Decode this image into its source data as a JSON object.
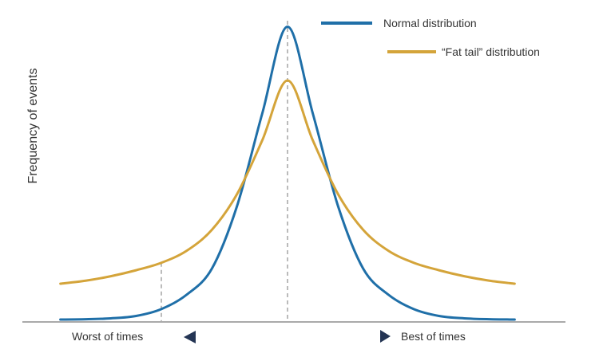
{
  "chart_data": {
    "type": "line",
    "title": "",
    "xlabel": "",
    "ylabel": "Frequency of events",
    "grid": false,
    "legend_position": "top-right",
    "x_extremes": {
      "left_label": "Worst of times",
      "right_label": "Best of times"
    },
    "xlim": [
      -4,
      4
    ],
    "ylim": [
      0,
      1
    ],
    "series": [
      {
        "name": "Normal distribution",
        "color": "#1f6fa8",
        "x": [
          -3.6,
          -3.2,
          -2.8,
          -2.4,
          -2.0,
          -1.6,
          -1.2,
          -0.8,
          -0.4,
          0.0,
          0.4,
          0.8,
          1.2,
          1.6,
          2.0,
          2.4,
          2.8,
          3.2,
          3.6
        ],
        "y": [
          0.0,
          0.001,
          0.004,
          0.012,
          0.035,
          0.083,
          0.17,
          0.38,
          0.69,
          0.98,
          0.69,
          0.38,
          0.17,
          0.083,
          0.035,
          0.012,
          0.004,
          0.001,
          0.0
        ]
      },
      {
        "name": "“Fat tail” distribution",
        "color": "#d4a43a",
        "x": [
          -3.6,
          -3.2,
          -2.8,
          -2.4,
          -2.0,
          -1.6,
          -1.2,
          -0.8,
          -0.4,
          0.0,
          0.4,
          0.8,
          1.2,
          1.6,
          2.0,
          2.4,
          2.8,
          3.2,
          3.6
        ],
        "y": [
          0.12,
          0.13,
          0.145,
          0.165,
          0.19,
          0.23,
          0.3,
          0.42,
          0.6,
          0.8,
          0.6,
          0.42,
          0.3,
          0.23,
          0.19,
          0.165,
          0.145,
          0.13,
          0.12
        ]
      }
    ],
    "reference_lines": [
      {
        "x": 0.0,
        "style": "dashed"
      },
      {
        "x": -2.0,
        "style": "dashed"
      }
    ]
  }
}
